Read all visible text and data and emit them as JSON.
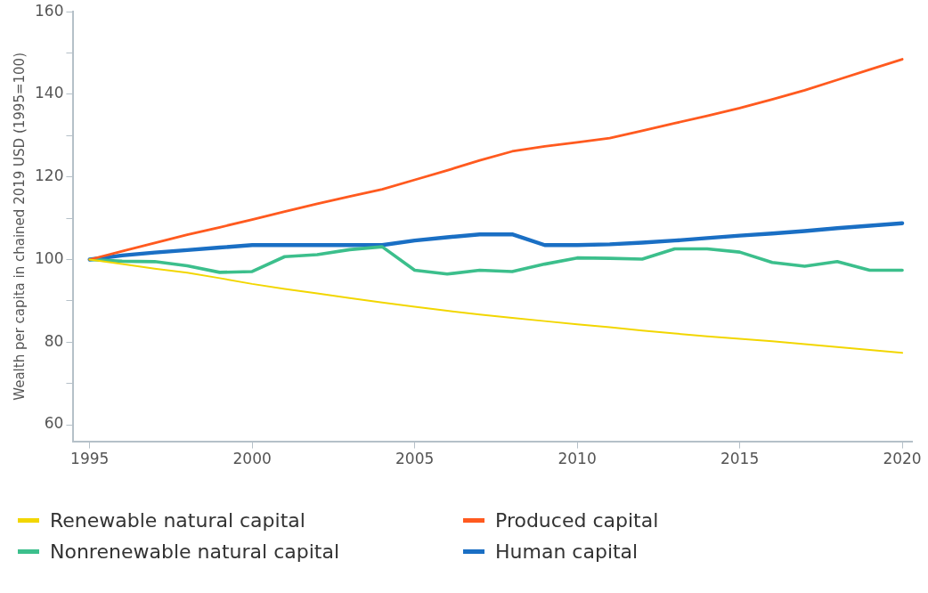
{
  "chart_data": {
    "type": "line",
    "ylabel": "Wealth per capita in chained 2019 USD (1995=100)",
    "x": [
      1995,
      1996,
      1997,
      1998,
      1999,
      2000,
      2001,
      2002,
      2003,
      2004,
      2005,
      2006,
      2007,
      2008,
      2009,
      2010,
      2011,
      2012,
      2013,
      2014,
      2015,
      2016,
      2017,
      2018,
      2019,
      2020
    ],
    "xlim": [
      1994.5,
      2020.3
    ],
    "xticks": [
      1995,
      2000,
      2005,
      2010,
      2015,
      2020
    ],
    "ylim": [
      56,
      160
    ],
    "yticks": [
      60,
      {
        "value": 70,
        "label": null
      },
      80,
      {
        "value": 90,
        "label": null
      },
      100,
      {
        "value": 110,
        "label": null
      },
      120,
      {
        "value": 130,
        "label": null
      },
      140,
      {
        "value": 150,
        "label": null
      },
      160
    ],
    "grid": false,
    "legend": "bottom",
    "marker": "none",
    "line_style": "solid",
    "series": [
      {
        "name": "Renewable natural capital",
        "color": "#f2d600",
        "values": [
          100,
          98.9,
          97.8,
          96.8,
          95.5,
          94.1,
          92.9,
          91.8,
          90.7,
          89.6,
          88.6,
          87.6,
          86.7,
          85.9,
          85.1,
          84.3,
          83.6,
          82.8,
          82.1,
          81.4,
          80.8,
          80.2,
          79.5,
          78.8,
          78.1,
          77.4
        ]
      },
      {
        "name": "Produced capital",
        "color": "#ff5a1f",
        "values": [
          100,
          102,
          104,
          106,
          107.8,
          109.7,
          111.6,
          113.5,
          115.3,
          117,
          119.3,
          121.6,
          124,
          126.2,
          127.4,
          128.4,
          129.4,
          131.2,
          133,
          134.8,
          136.7,
          138.8,
          141,
          143.5,
          146,
          148.5
        ]
      },
      {
        "name": "Nonrenewable natural capital",
        "color": "#3cbf8c",
        "values": [
          100,
          99.6,
          99.5,
          98.5,
          96.9,
          97.1,
          100.7,
          101.2,
          102.4,
          103.1,
          97.4,
          96.5,
          97.4,
          97.1,
          98.9,
          100.4,
          100.3,
          100.1,
          102.6,
          102.6,
          101.8,
          99.3,
          98.4,
          99.5,
          97.4,
          97.4
        ]
      },
      {
        "name": "Human capital",
        "color": "#1a6fc4",
        "values": [
          100,
          101,
          101.7,
          102.3,
          102.9,
          103.5,
          103.5,
          103.5,
          103.5,
          103.5,
          104.6,
          105.4,
          106.1,
          106.1,
          103.5,
          103.5,
          103.7,
          104.1,
          104.6,
          105.2,
          105.8,
          106.3,
          106.9,
          107.6,
          108.2,
          108.8
        ]
      }
    ]
  }
}
